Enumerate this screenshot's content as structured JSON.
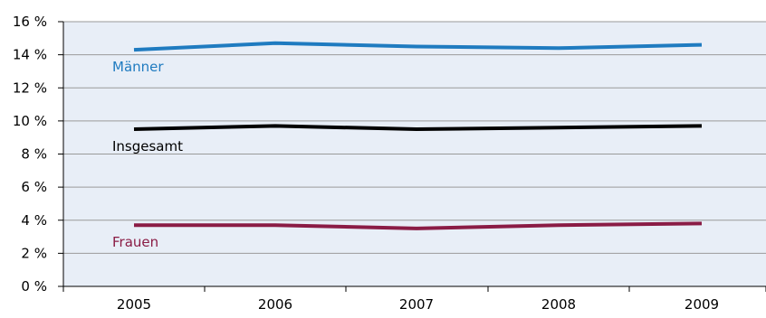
{
  "chart_data": {
    "type": "line",
    "title": "",
    "xlabel": "",
    "ylabel": "",
    "categories": [
      "2005",
      "2006",
      "2007",
      "2008",
      "2009"
    ],
    "ylim": [
      0,
      16
    ],
    "y_ticks": [
      0,
      2,
      4,
      6,
      8,
      10,
      12,
      14,
      16
    ],
    "y_tick_labels": [
      "0 %",
      "2 %",
      "4 %",
      "6 %",
      "8 %",
      "10 %",
      "12 %",
      "14 %",
      "16 %"
    ],
    "grid": true,
    "plot_background": "#e8eef7",
    "series": [
      {
        "name": "Männer",
        "color": "#1f7bc0",
        "values": [
          14.3,
          14.7,
          14.5,
          14.4,
          14.6
        ]
      },
      {
        "name": "Insgesamt",
        "color": "#000000",
        "values": [
          9.5,
          9.7,
          9.5,
          9.6,
          9.7
        ]
      },
      {
        "name": "Frauen",
        "color": "#8a1c45",
        "values": [
          3.7,
          3.7,
          3.5,
          3.7,
          3.8
        ]
      }
    ]
  }
}
